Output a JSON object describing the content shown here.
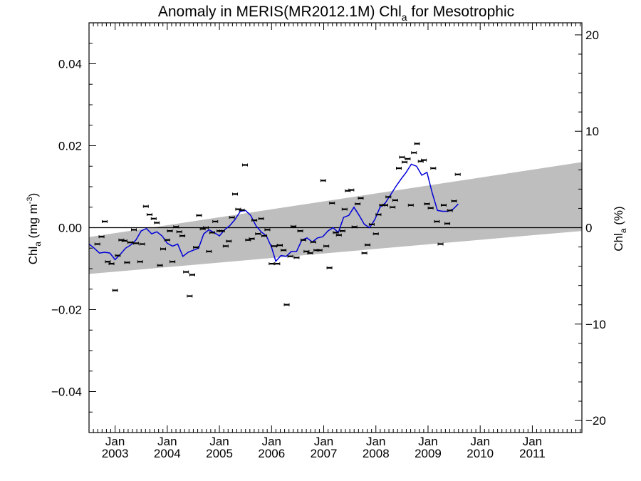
{
  "chart_data": {
    "type": "scatter",
    "title_main": "Anomaly in MERIS(MR2012.1M) Chl",
    "title_sub": "a",
    "title_tail": " for Mesotrophic",
    "ylabel_left_main": "Chl",
    "ylabel_left_sub": "a",
    "ylabel_left_tail": " (mg m",
    "ylabel_left_sup": "-3",
    "ylabel_left_close": ")",
    "ylabel_right_main": "Chl",
    "ylabel_right_sub": "a",
    "ylabel_right_tail": " (%)",
    "xlim": [
      2002.5,
      2011.95
    ],
    "ylim_left": [
      -0.05,
      0.05
    ],
    "ylim_right": [
      -21.25,
      21.25
    ],
    "left_ticks": [
      {
        "value": 0.04,
        "label": "0.04"
      },
      {
        "value": 0.02,
        "label": "0.02"
      },
      {
        "value": 0.0,
        "label": "0.00"
      },
      {
        "value": -0.02,
        "label": "−0.02"
      },
      {
        "value": -0.04,
        "label": "−0.04"
      }
    ],
    "right_ticks": [
      {
        "value": 20,
        "label": "20"
      },
      {
        "value": 10,
        "label": "10"
      },
      {
        "value": 0,
        "label": "0"
      },
      {
        "value": -10,
        "label": "−10"
      },
      {
        "value": -20,
        "label": "−20"
      }
    ],
    "x_ticks": [
      {
        "value": 2003.0,
        "month": "Jan",
        "year": "2003"
      },
      {
        "value": 2004.0,
        "month": "Jan",
        "year": "2004"
      },
      {
        "value": 2005.0,
        "month": "Jan",
        "year": "2005"
      },
      {
        "value": 2006.0,
        "month": "Jan",
        "year": "2006"
      },
      {
        "value": 2007.0,
        "month": "Jan",
        "year": "2007"
      },
      {
        "value": 2008.0,
        "month": "Jan",
        "year": "2008"
      },
      {
        "value": 2009.0,
        "month": "Jan",
        "year": "2009"
      },
      {
        "value": 2010.0,
        "month": "Jan",
        "year": "2010"
      },
      {
        "value": 2011.0,
        "month": "Jan",
        "year": "2011"
      }
    ],
    "band": {
      "upper": [
        [
          2002.5,
          -0.0023
        ],
        [
          2011.95,
          0.016
        ]
      ],
      "lower": [
        [
          2002.5,
          -0.0113
        ],
        [
          2011.95,
          -0.0008
        ]
      ]
    },
    "zero_line": 0.0,
    "points": [
      [
        2002.66,
        -0.004
      ],
      [
        2002.74,
        -0.0022
      ],
      [
        2002.8,
        0.0015
      ],
      [
        2002.86,
        -0.0083
      ],
      [
        2002.93,
        -0.0088
      ],
      [
        2003.0,
        -0.0153
      ],
      [
        2003.05,
        -0.0068
      ],
      [
        2003.12,
        -0.003
      ],
      [
        2003.18,
        -0.0032
      ],
      [
        2003.23,
        -0.0085
      ],
      [
        2003.29,
        -0.0036
      ],
      [
        2003.36,
        -0.0005
      ],
      [
        2003.4,
        -0.0038
      ],
      [
        2003.48,
        -0.0083
      ],
      [
        2003.52,
        -0.004
      ],
      [
        2003.59,
        0.0052
      ],
      [
        2003.66,
        0.0032
      ],
      [
        2003.74,
        0.0022
      ],
      [
        2003.8,
        0.0012
      ],
      [
        2003.86,
        -0.0092
      ],
      [
        2003.92,
        -0.0052
      ],
      [
        2004.0,
        -0.003
      ],
      [
        2004.05,
        -0.0008
      ],
      [
        2004.1,
        -0.0083
      ],
      [
        2004.17,
        0.0002
      ],
      [
        2004.23,
        -0.001
      ],
      [
        2004.29,
        -0.002
      ],
      [
        2004.36,
        -0.0108
      ],
      [
        2004.43,
        -0.0167
      ],
      [
        2004.48,
        -0.0115
      ],
      [
        2004.55,
        -0.0048
      ],
      [
        2004.61,
        0.003
      ],
      [
        2004.68,
        -0.0003
      ],
      [
        2004.74,
        0.0
      ],
      [
        2004.8,
        -0.0058
      ],
      [
        2004.86,
        -0.0012
      ],
      [
        2004.92,
        0.0015
      ],
      [
        2005.0,
        -0.0008
      ],
      [
        2005.05,
        -0.0008
      ],
      [
        2005.12,
        -0.0045
      ],
      [
        2005.18,
        -0.0033
      ],
      [
        2005.24,
        0.0025
      ],
      [
        2005.3,
        0.0082
      ],
      [
        2005.36,
        0.0045
      ],
      [
        2005.43,
        0.0043
      ],
      [
        2005.49,
        0.0153
      ],
      [
        2005.55,
        -0.003
      ],
      [
        2005.62,
        -0.0027
      ],
      [
        2005.67,
        0.0018
      ],
      [
        2005.74,
        -0.0015
      ],
      [
        2005.8,
        0.0022
      ],
      [
        2005.86,
        -0.002
      ],
      [
        2005.92,
        -0.0005
      ],
      [
        2006.0,
        -0.0088
      ],
      [
        2006.05,
        -0.0045
      ],
      [
        2006.11,
        -0.0088
      ],
      [
        2006.16,
        -0.0043
      ],
      [
        2006.23,
        -0.0055
      ],
      [
        2006.29,
        -0.0188
      ],
      [
        2006.36,
        -0.007
      ],
      [
        2006.42,
        0.0003
      ],
      [
        2006.48,
        -0.0073
      ],
      [
        2006.55,
        -0.0008
      ],
      [
        2006.61,
        -0.003
      ],
      [
        2006.67,
        -0.0058
      ],
      [
        2006.74,
        -0.0062
      ],
      [
        2006.8,
        -0.0035
      ],
      [
        2006.86,
        -0.0055
      ],
      [
        2006.92,
        -0.0055
      ],
      [
        2006.99,
        0.0115
      ],
      [
        2007.05,
        -0.0045
      ],
      [
        2007.11,
        -0.0098
      ],
      [
        2007.16,
        0.006
      ],
      [
        2007.23,
        -0.0012
      ],
      [
        2007.29,
        -0.0018
      ],
      [
        2007.36,
        -0.0008
      ],
      [
        2007.4,
        0.0045
      ],
      [
        2007.46,
        0.009
      ],
      [
        2007.53,
        0.0092
      ],
      [
        2007.59,
        0.0002
      ],
      [
        2007.65,
        0.0058
      ],
      [
        2007.71,
        0.0072
      ],
      [
        2007.78,
        -0.0062
      ],
      [
        2007.84,
        -0.0042
      ],
      [
        2007.92,
        0.0008
      ],
      [
        2008.0,
        -0.0015
      ],
      [
        2008.05,
        0.0032
      ],
      [
        2008.12,
        0.0055
      ],
      [
        2008.18,
        0.0055
      ],
      [
        2008.24,
        0.0075
      ],
      [
        2008.32,
        0.005
      ],
      [
        2008.37,
        0.0067
      ],
      [
        2008.44,
        0.0145
      ],
      [
        2008.5,
        0.0172
      ],
      [
        2008.55,
        0.016
      ],
      [
        2008.61,
        0.0168
      ],
      [
        2008.67,
        0.0055
      ],
      [
        2008.73,
        0.0183
      ],
      [
        2008.79,
        0.0205
      ],
      [
        2008.86,
        0.0162
      ],
      [
        2008.92,
        0.0165
      ],
      [
        2008.98,
        0.0058
      ],
      [
        2009.05,
        0.0048
      ],
      [
        2009.1,
        0.0145
      ],
      [
        2009.17,
        0.0015
      ],
      [
        2009.24,
        -0.004
      ],
      [
        2009.3,
        0.0055
      ],
      [
        2009.37,
        0.001
      ],
      [
        2009.42,
        0.0042
      ],
      [
        2009.5,
        0.0065
      ],
      [
        2009.57,
        0.013
      ]
    ],
    "smooth_line": [
      [
        2002.5,
        -0.004
      ],
      [
        2002.6,
        -0.005
      ],
      [
        2002.7,
        -0.0062
      ],
      [
        2002.8,
        -0.006
      ],
      [
        2002.9,
        -0.0062
      ],
      [
        2003.0,
        -0.0078
      ],
      [
        2003.1,
        -0.0065
      ],
      [
        2003.2,
        -0.005
      ],
      [
        2003.3,
        -0.0042
      ],
      [
        2003.4,
        -0.003
      ],
      [
        2003.5,
        -0.0008
      ],
      [
        2003.6,
        -0.0002
      ],
      [
        2003.7,
        -0.0015
      ],
      [
        2003.8,
        -0.001
      ],
      [
        2003.9,
        -0.002
      ],
      [
        2004.0,
        -0.0038
      ],
      [
        2004.1,
        -0.0045
      ],
      [
        2004.2,
        -0.004
      ],
      [
        2004.3,
        -0.007
      ],
      [
        2004.4,
        -0.006
      ],
      [
        2004.5,
        -0.0055
      ],
      [
        2004.6,
        -0.005
      ],
      [
        2004.7,
        -0.0015
      ],
      [
        2004.8,
        -0.0005
      ],
      [
        2004.9,
        -0.0012
      ],
      [
        2005.0,
        -0.002
      ],
      [
        2005.1,
        -0.0005
      ],
      [
        2005.2,
        0.0005
      ],
      [
        2005.3,
        0.002
      ],
      [
        2005.4,
        0.004
      ],
      [
        2005.5,
        0.0042
      ],
      [
        2005.6,
        0.003
      ],
      [
        2005.7,
        0.0005
      ],
      [
        2005.8,
        -0.001
      ],
      [
        2005.9,
        -0.002
      ],
      [
        2006.0,
        -0.0048
      ],
      [
        2006.08,
        -0.0082
      ],
      [
        2006.18,
        -0.0068
      ],
      [
        2006.28,
        -0.007
      ],
      [
        2006.38,
        -0.0058
      ],
      [
        2006.48,
        -0.0058
      ],
      [
        2006.58,
        -0.003
      ],
      [
        2006.68,
        -0.0025
      ],
      [
        2006.78,
        -0.0035
      ],
      [
        2006.88,
        -0.0025
      ],
      [
        2006.98,
        -0.0022
      ],
      [
        2007.08,
        -0.0008
      ],
      [
        2007.18,
        0.0
      ],
      [
        2007.28,
        -0.0012
      ],
      [
        2007.38,
        0.0025
      ],
      [
        2007.48,
        0.003
      ],
      [
        2007.58,
        0.005
      ],
      [
        2007.68,
        0.003
      ],
      [
        2007.78,
        0.0008
      ],
      [
        2007.88,
        0.0
      ],
      [
        2007.98,
        0.002
      ],
      [
        2008.08,
        0.005
      ],
      [
        2008.18,
        0.006
      ],
      [
        2008.28,
        0.008
      ],
      [
        2008.38,
        0.01
      ],
      [
        2008.48,
        0.0118
      ],
      [
        2008.58,
        0.0135
      ],
      [
        2008.68,
        0.0155
      ],
      [
        2008.78,
        0.015
      ],
      [
        2008.88,
        0.0128
      ],
      [
        2008.98,
        0.0135
      ],
      [
        2009.08,
        0.0085
      ],
      [
        2009.18,
        0.0042
      ],
      [
        2009.28,
        0.004
      ],
      [
        2009.38,
        0.004
      ],
      [
        2009.48,
        0.0045
      ],
      [
        2009.58,
        0.0058
      ]
    ]
  }
}
